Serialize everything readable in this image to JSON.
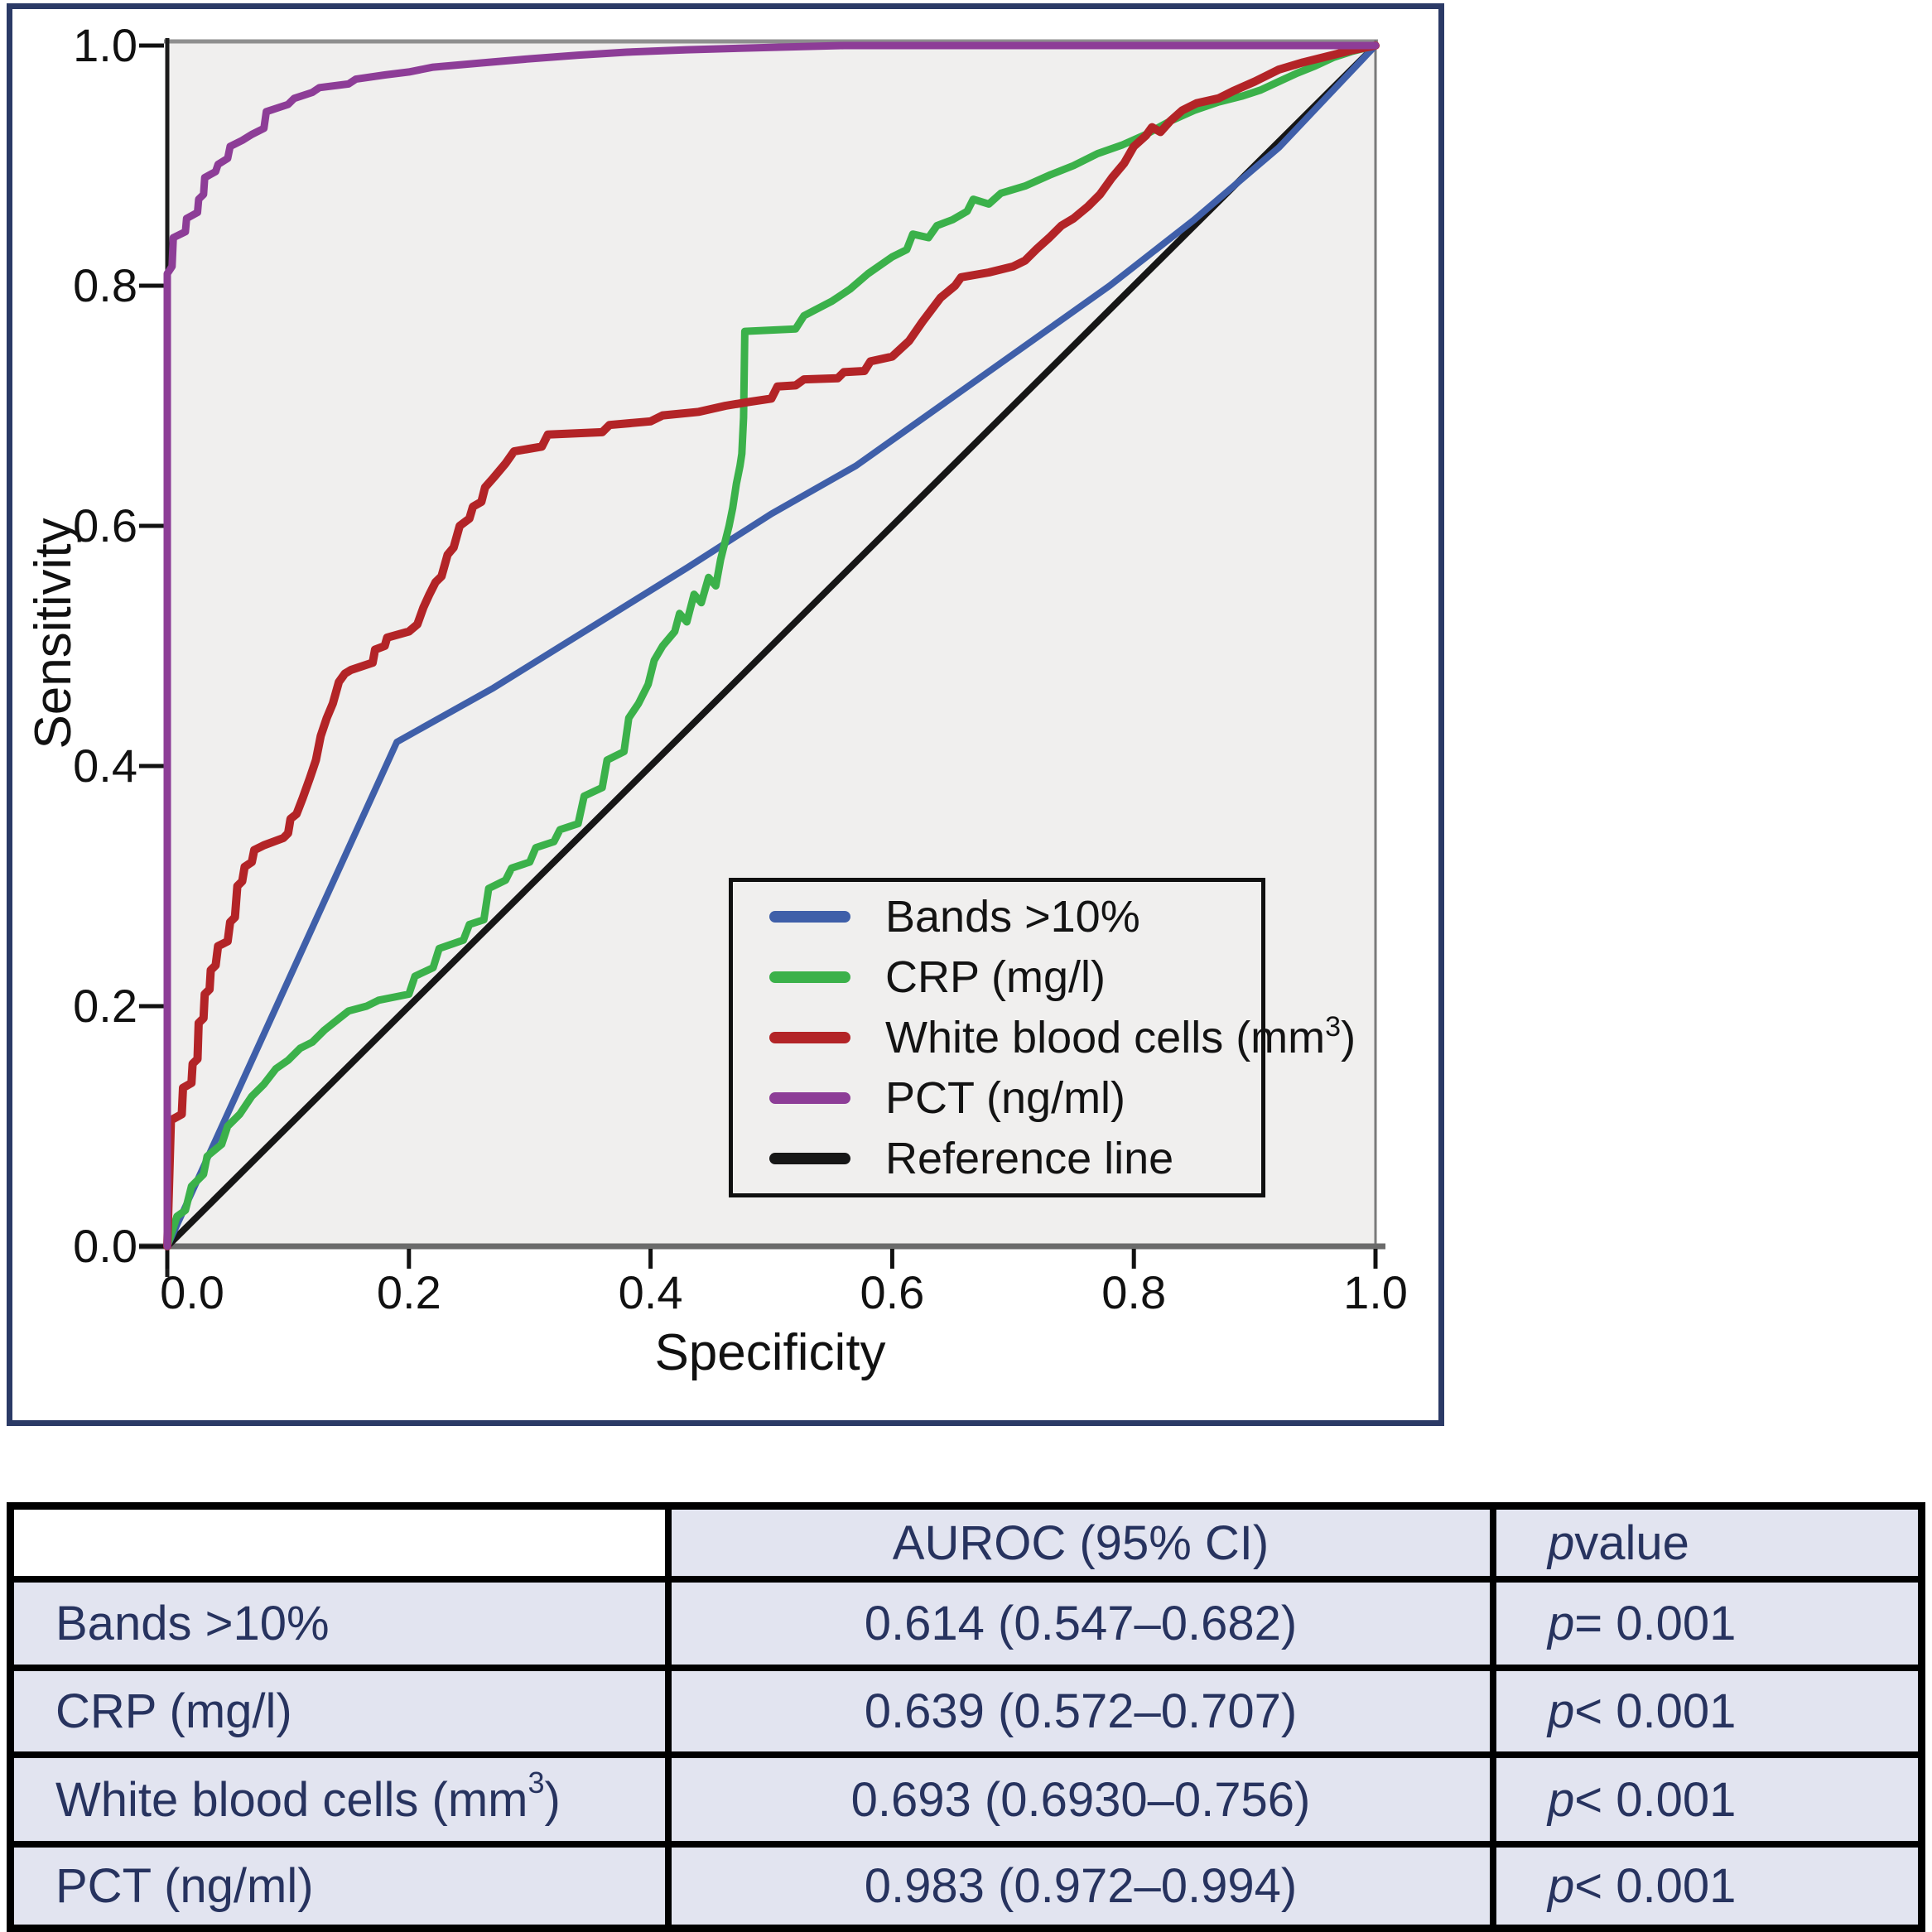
{
  "colors": {
    "figure_border": "#2b3a66",
    "plot_background": "#f0efee",
    "axis_line": "#1c1c1c",
    "muted_axis": "#6b6b6b",
    "table_cell_background": "#e2e4f0",
    "table_text": "#27335f",
    "table_border": "#000000"
  },
  "chart_data": {
    "type": "line",
    "title": "",
    "xlabel": "Specificity",
    "ylabel": "Sensitivity",
    "xlim": [
      0,
      1
    ],
    "ylim": [
      0,
      1
    ],
    "grid": false,
    "legend_position": "inside lower-right",
    "xticks": [
      "0.0",
      "0.2",
      "0.4",
      "0.6",
      "0.8",
      "1.0"
    ],
    "yticks": [
      "0.0",
      "0.2",
      "0.4",
      "0.6",
      "0.8",
      "1.0"
    ],
    "series": [
      {
        "name": "Bands >10%",
        "id": "bands",
        "color": "#3f5fa9",
        "width": 8,
        "points": [
          [
            0,
            0
          ],
          [
            0.19,
            0.42
          ],
          [
            0.27,
            0.465
          ],
          [
            0.35,
            0.515
          ],
          [
            0.43,
            0.565
          ],
          [
            0.5,
            0.61
          ],
          [
            0.57,
            0.65
          ],
          [
            0.64,
            0.7
          ],
          [
            0.71,
            0.75
          ],
          [
            0.78,
            0.8
          ],
          [
            0.85,
            0.855
          ],
          [
            0.92,
            0.915
          ],
          [
            1,
            1
          ]
        ]
      },
      {
        "name": "CRP (mg/l)",
        "id": "crp",
        "color": "#3bb14a",
        "width": 9,
        "points": [
          [
            0,
            0
          ],
          [
            0.008,
            0.025
          ],
          [
            0.015,
            0.03
          ],
          [
            0.02,
            0.05
          ],
          [
            0.03,
            0.06
          ],
          [
            0.033,
            0.075
          ],
          [
            0.045,
            0.085
          ],
          [
            0.05,
            0.1
          ],
          [
            0.06,
            0.11
          ],
          [
            0.07,
            0.125
          ],
          [
            0.08,
            0.135
          ],
          [
            0.09,
            0.148
          ],
          [
            0.1,
            0.155
          ],
          [
            0.11,
            0.165
          ],
          [
            0.12,
            0.17
          ],
          [
            0.13,
            0.18
          ],
          [
            0.14,
            0.188
          ],
          [
            0.15,
            0.196
          ],
          [
            0.165,
            0.2
          ],
          [
            0.175,
            0.205
          ],
          [
            0.2,
            0.21
          ],
          [
            0.205,
            0.225
          ],
          [
            0.22,
            0.232
          ],
          [
            0.225,
            0.248
          ],
          [
            0.245,
            0.255
          ],
          [
            0.25,
            0.268
          ],
          [
            0.262,
            0.272
          ],
          [
            0.266,
            0.298
          ],
          [
            0.28,
            0.305
          ],
          [
            0.285,
            0.315
          ],
          [
            0.3,
            0.32
          ],
          [
            0.305,
            0.332
          ],
          [
            0.32,
            0.337
          ],
          [
            0.325,
            0.347
          ],
          [
            0.34,
            0.352
          ],
          [
            0.345,
            0.375
          ],
          [
            0.36,
            0.382
          ],
          [
            0.364,
            0.405
          ],
          [
            0.378,
            0.412
          ],
          [
            0.382,
            0.44
          ],
          [
            0.39,
            0.452
          ],
          [
            0.398,
            0.468
          ],
          [
            0.403,
            0.488
          ],
          [
            0.41,
            0.5
          ],
          [
            0.42,
            0.512
          ],
          [
            0.424,
            0.527
          ],
          [
            0.43,
            0.52
          ],
          [
            0.436,
            0.543
          ],
          [
            0.442,
            0.536
          ],
          [
            0.448,
            0.557
          ],
          [
            0.454,
            0.55
          ],
          [
            0.458,
            0.572
          ],
          [
            0.465,
            0.6
          ],
          [
            0.468,
            0.615
          ],
          [
            0.471,
            0.635
          ],
          [
            0.474,
            0.65
          ],
          [
            0.4755,
            0.66
          ],
          [
            0.477,
            0.69
          ],
          [
            0.478,
            0.762
          ],
          [
            0.52,
            0.764
          ],
          [
            0.527,
            0.775
          ],
          [
            0.55,
            0.787
          ],
          [
            0.565,
            0.797
          ],
          [
            0.58,
            0.81
          ],
          [
            0.6,
            0.824
          ],
          [
            0.612,
            0.83
          ],
          [
            0.617,
            0.843
          ],
          [
            0.63,
            0.84
          ],
          [
            0.637,
            0.85
          ],
          [
            0.65,
            0.855
          ],
          [
            0.662,
            0.862
          ],
          [
            0.667,
            0.872
          ],
          [
            0.68,
            0.868
          ],
          [
            0.69,
            0.877
          ],
          [
            0.71,
            0.883
          ],
          [
            0.73,
            0.892
          ],
          [
            0.75,
            0.9
          ],
          [
            0.77,
            0.91
          ],
          [
            0.79,
            0.917
          ],
          [
            0.81,
            0.926
          ],
          [
            0.83,
            0.937
          ],
          [
            0.85,
            0.946
          ],
          [
            0.87,
            0.953
          ],
          [
            0.89,
            0.958
          ],
          [
            0.905,
            0.963
          ],
          [
            0.92,
            0.97
          ],
          [
            0.935,
            0.977
          ],
          [
            0.95,
            0.983
          ],
          [
            0.965,
            0.99
          ],
          [
            0.98,
            0.995
          ],
          [
            1,
            1
          ]
        ]
      },
      {
        "name": "White blood cells (mm3)",
        "id": "wbc",
        "color": "#b32427",
        "width": 10,
        "points": [
          [
            0,
            0
          ],
          [
            0.003,
            0.105
          ],
          [
            0.012,
            0.11
          ],
          [
            0.013,
            0.132
          ],
          [
            0.02,
            0.136
          ],
          [
            0.021,
            0.152
          ],
          [
            0.025,
            0.156
          ],
          [
            0.026,
            0.186
          ],
          [
            0.03,
            0.19
          ],
          [
            0.031,
            0.21
          ],
          [
            0.035,
            0.214
          ],
          [
            0.036,
            0.23
          ],
          [
            0.04,
            0.234
          ],
          [
            0.042,
            0.25
          ],
          [
            0.05,
            0.254
          ],
          [
            0.052,
            0.27
          ],
          [
            0.056,
            0.274
          ],
          [
            0.058,
            0.3
          ],
          [
            0.062,
            0.304
          ],
          [
            0.064,
            0.316
          ],
          [
            0.07,
            0.32
          ],
          [
            0.072,
            0.33
          ],
          [
            0.08,
            0.334
          ],
          [
            0.096,
            0.34
          ],
          [
            0.1,
            0.344
          ],
          [
            0.102,
            0.356
          ],
          [
            0.107,
            0.36
          ],
          [
            0.112,
            0.373
          ],
          [
            0.118,
            0.39
          ],
          [
            0.123,
            0.405
          ],
          [
            0.127,
            0.425
          ],
          [
            0.132,
            0.44
          ],
          [
            0.137,
            0.452
          ],
          [
            0.142,
            0.47
          ],
          [
            0.147,
            0.477
          ],
          [
            0.152,
            0.48
          ],
          [
            0.17,
            0.486
          ],
          [
            0.172,
            0.497
          ],
          [
            0.18,
            0.5
          ],
          [
            0.182,
            0.507
          ],
          [
            0.2,
            0.512
          ],
          [
            0.207,
            0.518
          ],
          [
            0.212,
            0.532
          ],
          [
            0.217,
            0.543
          ],
          [
            0.222,
            0.553
          ],
          [
            0.227,
            0.558
          ],
          [
            0.232,
            0.576
          ],
          [
            0.237,
            0.582
          ],
          [
            0.242,
            0.6
          ],
          [
            0.25,
            0.606
          ],
          [
            0.253,
            0.616
          ],
          [
            0.26,
            0.62
          ],
          [
            0.263,
            0.632
          ],
          [
            0.27,
            0.64
          ],
          [
            0.28,
            0.652
          ],
          [
            0.287,
            0.662
          ],
          [
            0.31,
            0.666
          ],
          [
            0.315,
            0.676
          ],
          [
            0.36,
            0.678
          ],
          [
            0.366,
            0.684
          ],
          [
            0.4,
            0.687
          ],
          [
            0.41,
            0.692
          ],
          [
            0.44,
            0.695
          ],
          [
            0.462,
            0.7
          ],
          [
            0.48,
            0.703
          ],
          [
            0.5,
            0.706
          ],
          [
            0.505,
            0.716
          ],
          [
            0.52,
            0.717
          ],
          [
            0.527,
            0.722
          ],
          [
            0.555,
            0.723
          ],
          [
            0.56,
            0.728
          ],
          [
            0.577,
            0.729
          ],
          [
            0.582,
            0.737
          ],
          [
            0.6,
            0.741
          ],
          [
            0.614,
            0.754
          ],
          [
            0.625,
            0.77
          ],
          [
            0.64,
            0.79
          ],
          [
            0.652,
            0.8
          ],
          [
            0.657,
            0.807
          ],
          [
            0.68,
            0.811
          ],
          [
            0.7,
            0.816
          ],
          [
            0.71,
            0.821
          ],
          [
            0.72,
            0.831
          ],
          [
            0.73,
            0.84
          ],
          [
            0.74,
            0.85
          ],
          [
            0.75,
            0.856
          ],
          [
            0.762,
            0.866
          ],
          [
            0.772,
            0.876
          ],
          [
            0.782,
            0.89
          ],
          [
            0.792,
            0.902
          ],
          [
            0.8,
            0.916
          ],
          [
            0.81,
            0.925
          ],
          [
            0.815,
            0.932
          ],
          [
            0.822,
            0.928
          ],
          [
            0.83,
            0.937
          ],
          [
            0.84,
            0.946
          ],
          [
            0.852,
            0.952
          ],
          [
            0.87,
            0.956
          ],
          [
            0.882,
            0.962
          ],
          [
            0.9,
            0.97
          ],
          [
            0.92,
            0.98
          ],
          [
            0.94,
            0.986
          ],
          [
            0.96,
            0.991
          ],
          [
            0.98,
            0.996
          ],
          [
            1,
            1
          ]
        ]
      },
      {
        "name": "PCT (ng/ml)",
        "id": "pct",
        "color": "#8d3d97",
        "width": 9,
        "points": [
          [
            0,
            0
          ],
          [
            0,
            0.81
          ],
          [
            0.004,
            0.816
          ],
          [
            0.005,
            0.84
          ],
          [
            0.015,
            0.845
          ],
          [
            0.016,
            0.856
          ],
          [
            0.025,
            0.861
          ],
          [
            0.026,
            0.872
          ],
          [
            0.03,
            0.876
          ],
          [
            0.031,
            0.89
          ],
          [
            0.04,
            0.895
          ],
          [
            0.042,
            0.901
          ],
          [
            0.05,
            0.906
          ],
          [
            0.052,
            0.916
          ],
          [
            0.062,
            0.921
          ],
          [
            0.07,
            0.926
          ],
          [
            0.08,
            0.931
          ],
          [
            0.082,
            0.945
          ],
          [
            0.1,
            0.951
          ],
          [
            0.105,
            0.956
          ],
          [
            0.12,
            0.961
          ],
          [
            0.126,
            0.965
          ],
          [
            0.15,
            0.968
          ],
          [
            0.156,
            0.972
          ],
          [
            0.18,
            0.9755
          ],
          [
            0.2,
            0.978
          ],
          [
            0.22,
            0.982
          ],
          [
            0.26,
            0.9855
          ],
          [
            0.3,
            0.989
          ],
          [
            0.34,
            0.992
          ],
          [
            0.38,
            0.9945
          ],
          [
            0.43,
            0.9965
          ],
          [
            0.5,
            0.9985
          ],
          [
            0.56,
            1
          ],
          [
            1,
            1
          ]
        ]
      },
      {
        "name": "Reference line",
        "id": "reference",
        "color": "#161616",
        "width": 8,
        "points": [
          [
            0,
            0
          ],
          [
            1,
            1
          ]
        ]
      }
    ]
  },
  "legend": {
    "items": [
      {
        "pre": "Bands >10%",
        "sup": "",
        "post": ""
      },
      {
        "pre": "CRP (mg/l)",
        "sup": "",
        "post": ""
      },
      {
        "pre": "White blood cells (mm",
        "sup": "3",
        "post": ")"
      },
      {
        "pre": "PCT (ng/ml)",
        "sup": "",
        "post": ""
      },
      {
        "pre": "Reference line",
        "sup": "",
        "post": ""
      }
    ]
  },
  "table": {
    "header": {
      "col1": "",
      "col2": "AUROC (95% CI)",
      "col3_prefix": "p",
      "col3_rest": " value"
    },
    "rows": [
      {
        "label_pre": "Bands >10%",
        "label_sup": "",
        "label_post": "",
        "auroc": "0.614 (0.547–0.682)",
        "p_prefix": "p",
        "p_rest": " = 0.001"
      },
      {
        "label_pre": "CRP (mg/l)",
        "label_sup": "",
        "label_post": "",
        "auroc": "0.639 (0.572–0.707)",
        "p_prefix": "p",
        "p_rest": " < 0.001"
      },
      {
        "label_pre": "White blood cells (mm",
        "label_sup": "3",
        "label_post": ")",
        "auroc": "0.693 (0.6930–0.756)",
        "p_prefix": "p",
        "p_rest": " < 0.001"
      },
      {
        "label_pre": "PCT (ng/ml)",
        "label_sup": "",
        "label_post": "",
        "auroc": "0.983 (0.972–0.994)",
        "p_prefix": "p",
        "p_rest": " < 0.001"
      }
    ]
  }
}
